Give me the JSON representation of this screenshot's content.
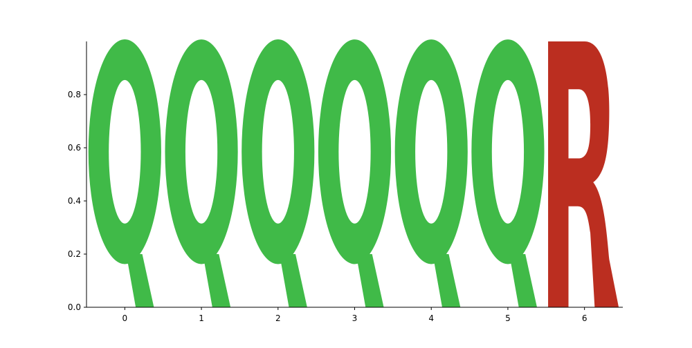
{
  "chart_data": {
    "type": "sequence-logo",
    "positions": [
      {
        "x": 0,
        "letter": "Q",
        "height": 1.0
      },
      {
        "x": 1,
        "letter": "Q",
        "height": 1.0
      },
      {
        "x": 2,
        "letter": "Q",
        "height": 1.0
      },
      {
        "x": 3,
        "letter": "Q",
        "height": 1.0
      },
      {
        "x": 4,
        "letter": "Q",
        "height": 1.0
      },
      {
        "x": 5,
        "letter": "Q",
        "height": 1.0
      },
      {
        "x": 6,
        "letter": "R",
        "height": 1.0
      }
    ],
    "letter_colors": {
      "Q": "#40BA48",
      "R": "#BB2E20"
    },
    "xticks": [
      "0",
      "1",
      "2",
      "3",
      "4",
      "5",
      "6"
    ],
    "yticks": [
      "0.0",
      "0.2",
      "0.4",
      "0.6",
      "0.8"
    ],
    "xlim": [
      -0.5,
      6.5
    ],
    "ylim": [
      0,
      1.0
    ],
    "grid": false
  }
}
